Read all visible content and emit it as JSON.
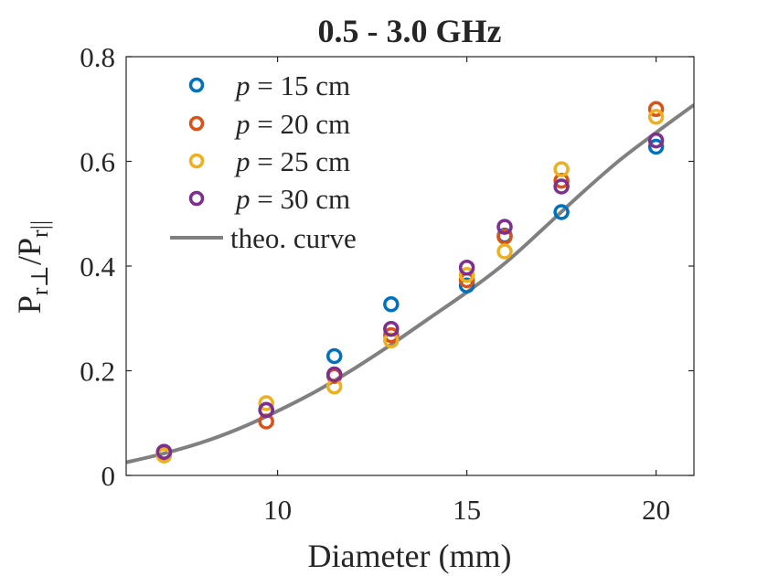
{
  "chart_data": {
    "type": "scatter",
    "title": "0.5 - 3.0 GHz",
    "xlabel": "Diameter (mm)",
    "ylabel": "P_r⊥/P_r||",
    "ylabel_parts": {
      "main1": "P",
      "sub1": "r⊥",
      "slash": "/",
      "main2": "P",
      "sub2": "r||"
    },
    "xlim": [
      6,
      21
    ],
    "ylim": [
      0,
      0.8
    ],
    "xticks": [
      10,
      15,
      20
    ],
    "yticks": [
      0,
      0.2,
      0.4,
      0.6,
      0.8
    ],
    "ytick_labels": [
      "0",
      "0.2",
      "0.4",
      "0.6",
      "0.8"
    ],
    "grid": false,
    "legend_position": "top-left",
    "series": [
      {
        "name": "p = 15 cm",
        "legend_var": "p",
        "legend_rest": " = 15 cm",
        "color": "#0072BD",
        "x": [
          7,
          9.7,
          11.5,
          13,
          15,
          16,
          17.5,
          20
        ],
        "y": [
          0.045,
          0.125,
          0.228,
          0.327,
          0.363,
          0.458,
          0.503,
          0.628
        ]
      },
      {
        "name": "p = 20 cm",
        "legend_var": "p",
        "legend_rest": " = 20 cm",
        "color": "#D95319",
        "x": [
          7,
          9.7,
          11.5,
          13,
          15,
          16,
          17.5,
          20
        ],
        "y": [
          0.04,
          0.103,
          0.19,
          0.268,
          0.373,
          0.456,
          0.563,
          0.7
        ]
      },
      {
        "name": "p = 25 cm",
        "legend_var": "p",
        "legend_rest": " = 25 cm",
        "color": "#EDB120",
        "x": [
          7,
          9.7,
          11.5,
          13,
          15,
          16,
          17.5,
          20
        ],
        "y": [
          0.038,
          0.138,
          0.17,
          0.258,
          0.383,
          0.428,
          0.585,
          0.685
        ]
      },
      {
        "name": "p = 30 cm",
        "legend_var": "p",
        "legend_rest": " = 30 cm",
        "color": "#7E2F8E",
        "x": [
          7,
          9.7,
          11.5,
          13,
          15,
          16,
          17.5,
          20
        ],
        "y": [
          0.045,
          0.125,
          0.193,
          0.28,
          0.397,
          0.475,
          0.552,
          0.64
        ]
      }
    ],
    "curve": {
      "name": "theo. curve",
      "color": "#808080",
      "x": [
        6,
        7,
        8,
        9,
        10,
        11,
        12,
        13,
        14,
        15,
        16,
        17,
        18,
        19,
        20,
        21
      ],
      "y": [
        0.025,
        0.042,
        0.063,
        0.09,
        0.123,
        0.16,
        0.203,
        0.25,
        0.3,
        0.35,
        0.405,
        0.47,
        0.537,
        0.6,
        0.655,
        0.708
      ]
    }
  }
}
